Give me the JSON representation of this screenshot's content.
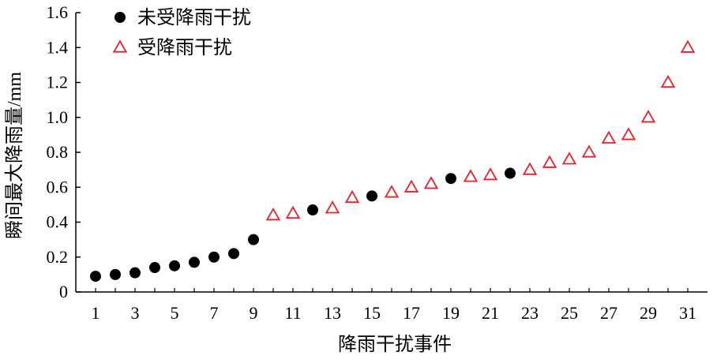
{
  "chart_data": {
    "type": "scatter",
    "title": "",
    "xlabel": "降雨干扰事件",
    "ylabel": "瞬间最大降雨量/mm",
    "xlim": [
      0,
      32
    ],
    "ylim": [
      0,
      1.6
    ],
    "x_ticks": [
      "1",
      "3",
      "5",
      "7",
      "9",
      "11",
      "13",
      "15",
      "17",
      "19",
      "21",
      "23",
      "25",
      "27",
      "29",
      "31"
    ],
    "x_tick_values": [
      1,
      3,
      5,
      7,
      9,
      11,
      13,
      15,
      17,
      19,
      21,
      23,
      25,
      27,
      29,
      31
    ],
    "y_ticks": [
      "0",
      "0.2",
      "0.4",
      "0.6",
      "0.8",
      "1.0",
      "1.2",
      "1.4",
      "1.6"
    ],
    "y_tick_values": [
      0,
      0.2,
      0.4,
      0.6,
      0.8,
      1.0,
      1.2,
      1.4,
      1.6
    ],
    "grid": false,
    "legend_position": "top-left",
    "series": [
      {
        "name": "未受降雨干扰",
        "marker": "filled-circle",
        "color": "#000000",
        "x": [
          1,
          2,
          3,
          4,
          5,
          6,
          7,
          8,
          9,
          12,
          15,
          19,
          22
        ],
        "y": [
          0.09,
          0.1,
          0.11,
          0.14,
          0.15,
          0.17,
          0.2,
          0.22,
          0.3,
          0.47,
          0.55,
          0.65,
          0.68
        ]
      },
      {
        "name": "受降雨干扰",
        "marker": "open-triangle",
        "color": "#e8202a",
        "x": [
          10,
          11,
          13,
          14,
          16,
          17,
          18,
          20,
          21,
          23,
          24,
          25,
          26,
          27,
          28,
          29,
          30,
          31
        ],
        "y": [
          0.44,
          0.45,
          0.48,
          0.54,
          0.57,
          0.6,
          0.62,
          0.66,
          0.67,
          0.7,
          0.74,
          0.76,
          0.8,
          0.88,
          0.9,
          1.0,
          1.2,
          1.4
        ]
      }
    ]
  }
}
